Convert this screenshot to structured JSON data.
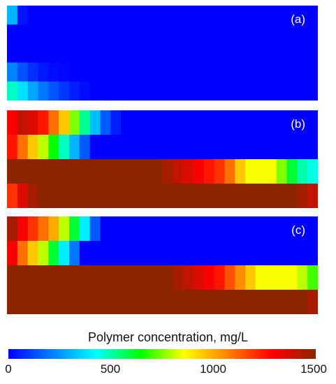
{
  "chart_data": {
    "type": "heatmap",
    "colorbar": {
      "title": "Polymer concentration, mg/L",
      "min": 0,
      "max": 1500,
      "ticks": [
        "0",
        "500",
        "1000",
        "1500"
      ],
      "colormap": [
        "#0000ff",
        "#0080ff",
        "#00ffff",
        "#00ff00",
        "#ffff00",
        "#ff8000",
        "#ff0000",
        "#8b2500"
      ]
    },
    "panels": [
      {
        "label": "(a)",
        "layers": [
          [
            300,
            30,
            0,
            0,
            0,
            0,
            0,
            0,
            0,
            0,
            0,
            0,
            0,
            0,
            0,
            0,
            0,
            0,
            0,
            0,
            0,
            0,
            0,
            0,
            0,
            0,
            0,
            0,
            0,
            0
          ],
          [
            0,
            0,
            0,
            0,
            0,
            0,
            0,
            0,
            0,
            0,
            0,
            0,
            0,
            0,
            0,
            0,
            0,
            0,
            0,
            0,
            0,
            0,
            0,
            0,
            0,
            0,
            0,
            0,
            0,
            0
          ],
          [
            0,
            0,
            0,
            0,
            0,
            0,
            0,
            0,
            0,
            0,
            0,
            0,
            0,
            0,
            0,
            0,
            0,
            0,
            0,
            0,
            0,
            0,
            0,
            0,
            0,
            0,
            0,
            0,
            0,
            0
          ],
          [
            220,
            140,
            80,
            40,
            20,
            10,
            0,
            0,
            0,
            0,
            0,
            0,
            0,
            0,
            0,
            0,
            0,
            0,
            0,
            0,
            0,
            0,
            0,
            0,
            0,
            0,
            0,
            0,
            0,
            0
          ],
          [
            480,
            380,
            280,
            200,
            140,
            90,
            50,
            20,
            0,
            0,
            0,
            0,
            0,
            0,
            0,
            0,
            0,
            0,
            0,
            0,
            0,
            0,
            0,
            0,
            0,
            0,
            0,
            0,
            0,
            0
          ]
        ]
      },
      {
        "label": "(b)",
        "layers": [
          [
            1300,
            1400,
            1350,
            1250,
            1100,
            950,
            750,
            520,
            320,
            150,
            50,
            0,
            0,
            0,
            0,
            0,
            0,
            0,
            0,
            0,
            0,
            0,
            0,
            0,
            0,
            0,
            0,
            0,
            0,
            0
          ],
          [
            1250,
            1100,
            950,
            800,
            650,
            480,
            300,
            150,
            0,
            0,
            0,
            0,
            0,
            0,
            0,
            0,
            0,
            0,
            0,
            0,
            0,
            0,
            0,
            0,
            0,
            0,
            0,
            0,
            0,
            0
          ],
          [
            1500,
            1500,
            1500,
            1500,
            1500,
            1500,
            1500,
            1500,
            1500,
            1500,
            1500,
            1500,
            1500,
            1500,
            1500,
            1450,
            1400,
            1350,
            1300,
            1250,
            1200,
            1100,
            950,
            850,
            850,
            850,
            750,
            600,
            500,
            450
          ],
          [
            1200,
            1350,
            1450,
            1500,
            1500,
            1500,
            1500,
            1500,
            1500,
            1500,
            1500,
            1500,
            1500,
            1500,
            1500,
            1500,
            1500,
            1500,
            1500,
            1500,
            1500,
            1500,
            1500,
            1500,
            1500,
            1500,
            1500,
            1500,
            1450,
            1400
          ]
        ]
      },
      {
        "label": "(c)",
        "layers": [
          [
            1450,
            1300,
            1200,
            1100,
            1000,
            800,
            600,
            400,
            150,
            0,
            0,
            0,
            0,
            0,
            0,
            0,
            0,
            0,
            0,
            0,
            0,
            0,
            0,
            0,
            0,
            0,
            0,
            0,
            0,
            0
          ],
          [
            1300,
            1100,
            950,
            800,
            600,
            400,
            200,
            0,
            0,
            0,
            0,
            0,
            0,
            0,
            0,
            0,
            0,
            0,
            0,
            0,
            0,
            0,
            0,
            0,
            0,
            0,
            0,
            0,
            0,
            0
          ],
          [
            1500,
            1500,
            1500,
            1500,
            1500,
            1500,
            1500,
            1500,
            1500,
            1500,
            1500,
            1500,
            1500,
            1500,
            1500,
            1500,
            1450,
            1400,
            1350,
            1300,
            1250,
            1150,
            1050,
            950,
            850,
            850,
            850,
            850,
            800,
            700
          ],
          [
            1500,
            1500,
            1500,
            1500,
            1500,
            1500,
            1500,
            1500,
            1500,
            1500,
            1500,
            1500,
            1500,
            1500,
            1500,
            1500,
            1500,
            1500,
            1500,
            1500,
            1500,
            1500,
            1500,
            1500,
            1500,
            1500,
            1500,
            1500,
            1500,
            1450
          ]
        ]
      }
    ]
  }
}
